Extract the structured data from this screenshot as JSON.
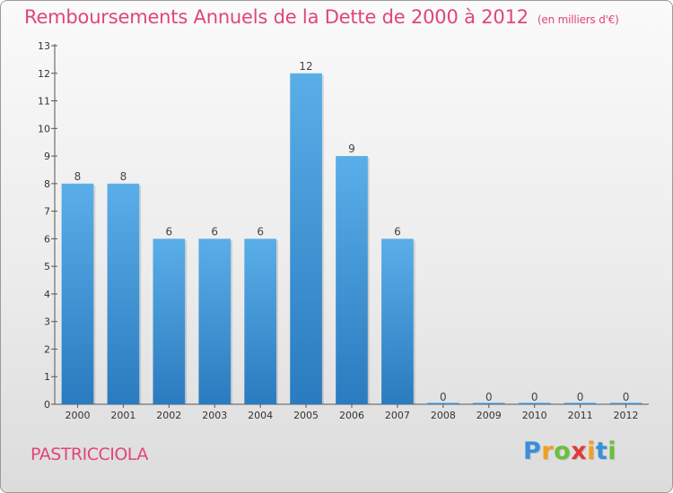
{
  "header": {
    "title": "Remboursements Annuels de la Dette de 2000 à 2012",
    "unit": "(en milliers d'€)"
  },
  "footer": {
    "commune": "PASTRICCIOLA",
    "logo": "Proxiti",
    "logo_colors": [
      "#3a8fd8",
      "#f0a020",
      "#6cbf3a",
      "#e03a3a",
      "#f0a020",
      "#3a8fd8",
      "#6cbf3a"
    ]
  },
  "chart_data": {
    "type": "bar",
    "categories": [
      "2000",
      "2001",
      "2002",
      "2003",
      "2004",
      "2005",
      "2006",
      "2007",
      "2008",
      "2009",
      "2010",
      "2011",
      "2012"
    ],
    "values": [
      8,
      8,
      6,
      6,
      6,
      12,
      9,
      6,
      0,
      0,
      0,
      0,
      0
    ],
    "data_labels": [
      "8",
      "8",
      "6",
      "6",
      "6",
      "12",
      "9",
      "6",
      "0",
      "0",
      "0",
      "0",
      "0"
    ],
    "y_ticks": [
      0,
      1,
      2,
      3,
      4,
      5,
      6,
      7,
      8,
      9,
      10,
      11,
      12,
      13
    ],
    "ylim": [
      0,
      13
    ],
    "grid": false,
    "bar_color": "#3b8fd4"
  }
}
